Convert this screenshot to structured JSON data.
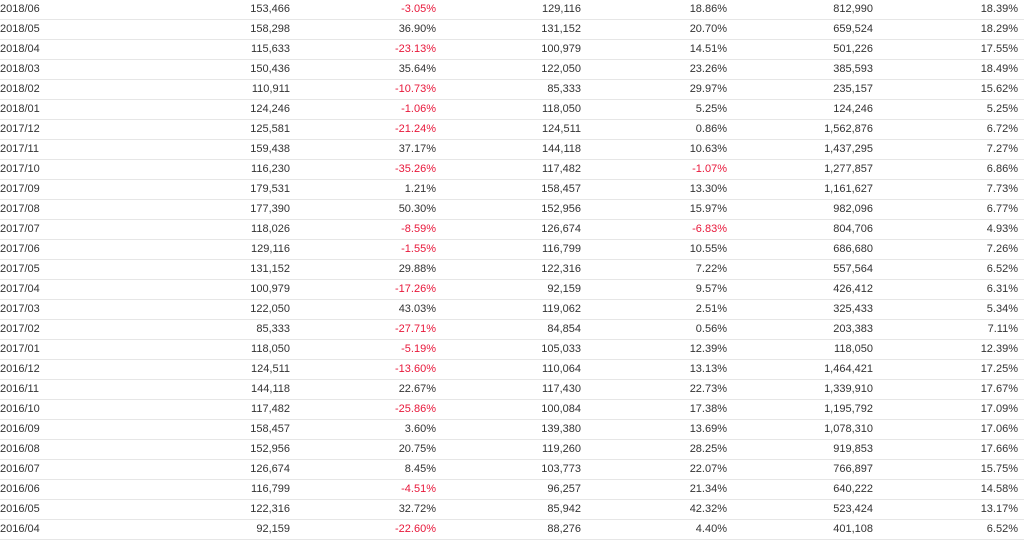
{
  "colors": {
    "text": "#333333",
    "negative": "#e8173a",
    "row_border": "#e6e6e6"
  },
  "rows": [
    [
      "2018/06",
      "153,466",
      "-3.05%",
      "129,116",
      "18.86%",
      "812,990",
      "18.39%"
    ],
    [
      "2018/05",
      "158,298",
      "36.90%",
      "131,152",
      "20.70%",
      "659,524",
      "18.29%"
    ],
    [
      "2018/04",
      "115,633",
      "-23.13%",
      "100,979",
      "14.51%",
      "501,226",
      "17.55%"
    ],
    [
      "2018/03",
      "150,436",
      "35.64%",
      "122,050",
      "23.26%",
      "385,593",
      "18.49%"
    ],
    [
      "2018/02",
      "110,911",
      "-10.73%",
      "85,333",
      "29.97%",
      "235,157",
      "15.62%"
    ],
    [
      "2018/01",
      "124,246",
      "-1.06%",
      "118,050",
      "5.25%",
      "124,246",
      "5.25%"
    ],
    [
      "2017/12",
      "125,581",
      "-21.24%",
      "124,511",
      "0.86%",
      "1,562,876",
      "6.72%"
    ],
    [
      "2017/11",
      "159,438",
      "37.17%",
      "144,118",
      "10.63%",
      "1,437,295",
      "7.27%"
    ],
    [
      "2017/10",
      "116,230",
      "-35.26%",
      "117,482",
      "-1.07%",
      "1,277,857",
      "6.86%"
    ],
    [
      "2017/09",
      "179,531",
      "1.21%",
      "158,457",
      "13.30%",
      "1,161,627",
      "7.73%"
    ],
    [
      "2017/08",
      "177,390",
      "50.30%",
      "152,956",
      "15.97%",
      "982,096",
      "6.77%"
    ],
    [
      "2017/07",
      "118,026",
      "-8.59%",
      "126,674",
      "-6.83%",
      "804,706",
      "4.93%"
    ],
    [
      "2017/06",
      "129,116",
      "-1.55%",
      "116,799",
      "10.55%",
      "686,680",
      "7.26%"
    ],
    [
      "2017/05",
      "131,152",
      "29.88%",
      "122,316",
      "7.22%",
      "557,564",
      "6.52%"
    ],
    [
      "2017/04",
      "100,979",
      "-17.26%",
      "92,159",
      "9.57%",
      "426,412",
      "6.31%"
    ],
    [
      "2017/03",
      "122,050",
      "43.03%",
      "119,062",
      "2.51%",
      "325,433",
      "5.34%"
    ],
    [
      "2017/02",
      "85,333",
      "-27.71%",
      "84,854",
      "0.56%",
      "203,383",
      "7.11%"
    ],
    [
      "2017/01",
      "118,050",
      "-5.19%",
      "105,033",
      "12.39%",
      "118,050",
      "12.39%"
    ],
    [
      "2016/12",
      "124,511",
      "-13.60%",
      "110,064",
      "13.13%",
      "1,464,421",
      "17.25%"
    ],
    [
      "2016/11",
      "144,118",
      "22.67%",
      "117,430",
      "22.73%",
      "1,339,910",
      "17.67%"
    ],
    [
      "2016/10",
      "117,482",
      "-25.86%",
      "100,084",
      "17.38%",
      "1,195,792",
      "17.09%"
    ],
    [
      "2016/09",
      "158,457",
      "3.60%",
      "139,380",
      "13.69%",
      "1,078,310",
      "17.06%"
    ],
    [
      "2016/08",
      "152,956",
      "20.75%",
      "119,260",
      "28.25%",
      "919,853",
      "17.66%"
    ],
    [
      "2016/07",
      "126,674",
      "8.45%",
      "103,773",
      "22.07%",
      "766,897",
      "15.75%"
    ],
    [
      "2016/06",
      "116,799",
      "-4.51%",
      "96,257",
      "21.34%",
      "640,222",
      "14.58%"
    ],
    [
      "2016/05",
      "122,316",
      "32.72%",
      "85,942",
      "42.32%",
      "523,424",
      "13.17%"
    ],
    [
      "2016/04",
      "92,159",
      "-22.60%",
      "88,276",
      "4.40%",
      "401,108",
      "6.52%"
    ]
  ]
}
